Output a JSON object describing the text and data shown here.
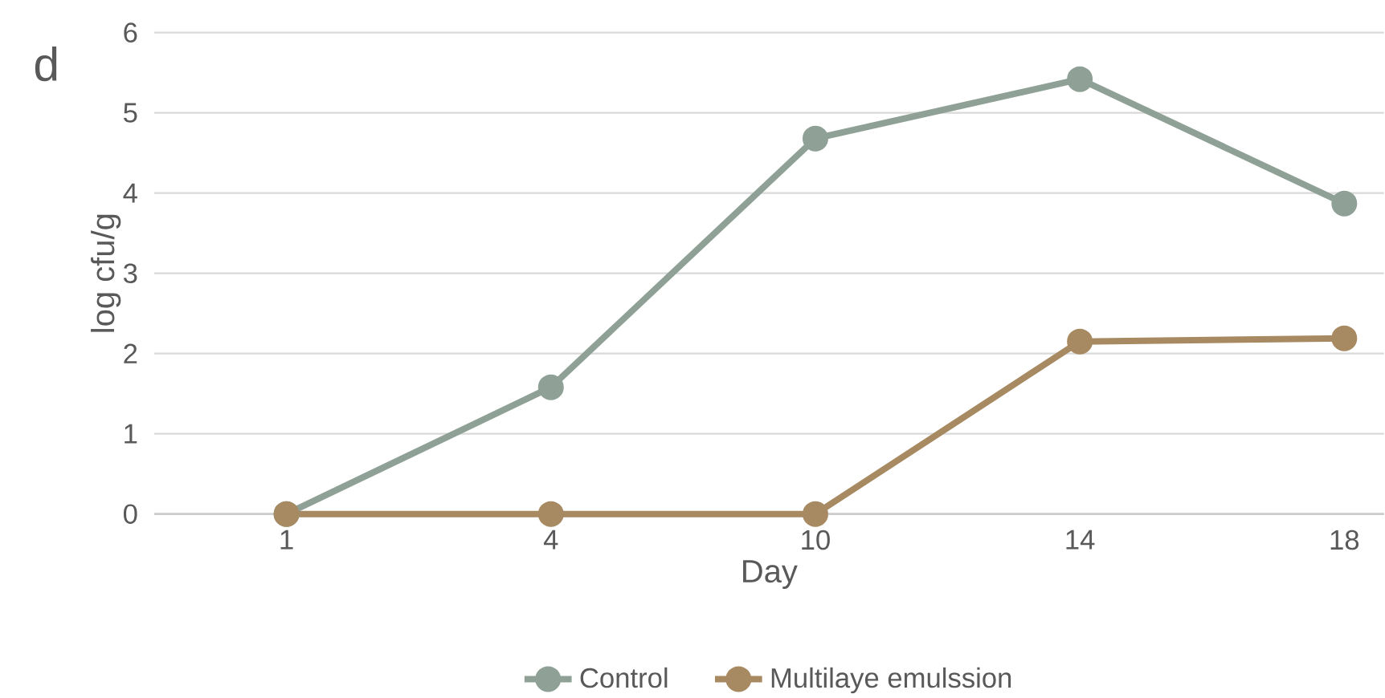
{
  "chart_data": {
    "type": "line",
    "xlabel": "Day",
    "ylabel": "log cfu/g",
    "annotations": [
      "d"
    ],
    "categories": [
      "1",
      "4",
      "10",
      "14",
      "18"
    ],
    "series": [
      {
        "name": "Control",
        "color": "#8fa197",
        "values": [
          0,
          1.58,
          4.68,
          5.42,
          3.87
        ]
      },
      {
        "name": "Multilaye emulssion",
        "color": "#a88a62",
        "values": [
          0,
          0,
          0,
          2.15,
          2.19
        ]
      }
    ],
    "ylim": [
      0,
      6
    ],
    "yticks": [
      0,
      1,
      2,
      3,
      4,
      5,
      6
    ],
    "grid": "y",
    "legend": "bottom",
    "marker": "circle",
    "line_style": "solid"
  }
}
